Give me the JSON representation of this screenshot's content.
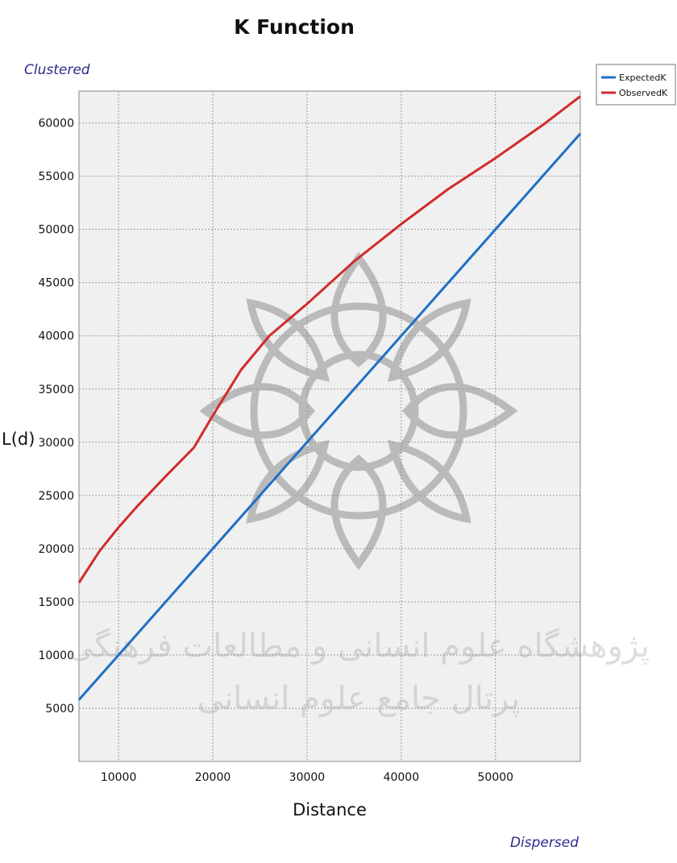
{
  "chart_data": {
    "type": "line",
    "title": "K Function",
    "xlabel": "Distance",
    "ylabel": "L(d)",
    "corner_top": "Clustered",
    "corner_bottom": "Dispersed",
    "xlim": [
      5800,
      59000
    ],
    "ylim": [
      0,
      63000
    ],
    "xticks": [
      10000,
      20000,
      30000,
      40000,
      50000
    ],
    "yticks": [
      5000,
      10000,
      15000,
      20000,
      25000,
      30000,
      35000,
      40000,
      45000,
      50000,
      55000,
      60000
    ],
    "grid": true,
    "legend_position": "top-right",
    "series": [
      {
        "name": "ExpectedK",
        "color": "#1f6fc4",
        "x": [
          5800,
          59000
        ],
        "y": [
          5800,
          59000
        ]
      },
      {
        "name": "ObservedK",
        "color": "#d22b2b",
        "x": [
          5800,
          8000,
          10000,
          12000,
          15000,
          18000,
          20000,
          23000,
          26000,
          30000,
          35000,
          40000,
          45000,
          50000,
          55000,
          59000
        ],
        "y": [
          16800,
          19800,
          22000,
          24000,
          26800,
          29500,
          32500,
          36800,
          40000,
          43000,
          47000,
          50500,
          53800,
          56700,
          59800,
          62500
        ]
      }
    ]
  },
  "watermark": {
    "line1": "پژوهشگاه علوم انسانی و مطالعات فرهنگی",
    "line2": "پرتال جامع علوم انسانی"
  }
}
